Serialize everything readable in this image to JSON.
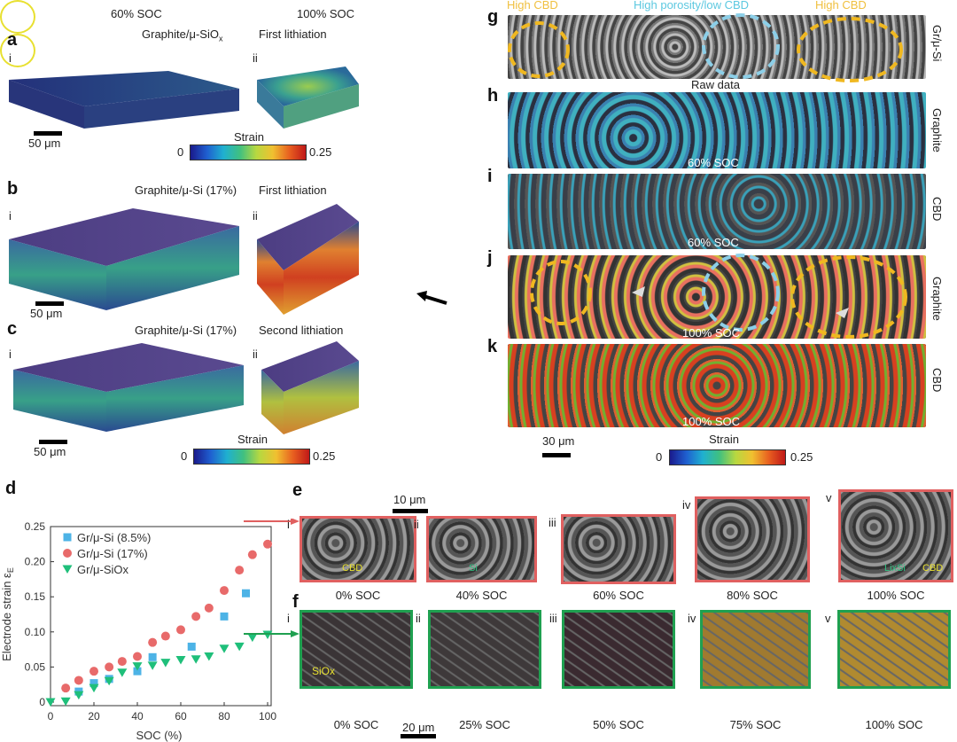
{
  "panels": {
    "a": {
      "label": "a",
      "col_left": "60% SOC",
      "col_right": "100% SOC",
      "material": "Graphite/μ-SiO",
      "material_sub": "x",
      "condition": "First lithiation",
      "i": "i",
      "ii": "ii",
      "scale": "50 μm",
      "colorbar": {
        "title": "Strain",
        "min": "0",
        "max": "0.25"
      }
    },
    "b": {
      "label": "b",
      "material": "Graphite/μ-Si (17%)",
      "condition": "First lithiation",
      "i": "i",
      "ii": "ii",
      "scale": "50 μm"
    },
    "c": {
      "label": "c",
      "material": "Graphite/μ-Si (17%)",
      "condition": "Second lithiation",
      "i": "i",
      "ii": "ii",
      "scale": "50 μm",
      "colorbar": {
        "title": "Strain",
        "min": "0",
        "max": "0.25"
      }
    },
    "g": {
      "label": "g",
      "ann_left": "High CBD",
      "ann_mid": "High porosity/low CBD",
      "ann_right": "High CBD",
      "caption": "Raw data",
      "side": "Gr/μ-Si"
    },
    "h": {
      "label": "h",
      "caption": "60% SOC",
      "side": "Graphite"
    },
    "i": {
      "label": "i",
      "caption": "60% SOC",
      "side": "CBD"
    },
    "j": {
      "label": "j",
      "caption": "100% SOC",
      "side": "Graphite"
    },
    "k": {
      "label": "k",
      "caption": "100% SOC",
      "side": "CBD",
      "scale": "30 μm",
      "colorbar": {
        "title": "Strain",
        "min": "0",
        "max": "0.25"
      }
    },
    "e": {
      "label": "e",
      "scale": "10 μm",
      "items": [
        {
          "num": "i",
          "soc": "0% SOC",
          "ann": "CBD"
        },
        {
          "num": "ii",
          "soc": "40% SOC",
          "ann": "Si"
        },
        {
          "num": "iii",
          "soc": "60% SOC"
        },
        {
          "num": "iv",
          "soc": "80% SOC"
        },
        {
          "num": "v",
          "soc": "100% SOC",
          "ann": "LixSi",
          "ann2": "CBD"
        }
      ]
    },
    "f": {
      "label": "f",
      "scale": "20 μm",
      "items": [
        {
          "num": "i",
          "soc": "0% SOC",
          "ann": "SiOx"
        },
        {
          "num": "ii",
          "soc": "25% SOC"
        },
        {
          "num": "iii",
          "soc": "50% SOC"
        },
        {
          "num": "iv",
          "soc": "75% SOC"
        },
        {
          "num": "v",
          "soc": "100% SOC"
        }
      ]
    },
    "d": {
      "label": "d"
    }
  },
  "colors": {
    "series1": "#4db3e6",
    "series2": "#e86a6a",
    "series3": "#1fbf7a",
    "high_cbd": "#f0b820",
    "low_cbd": "#8ccfe8",
    "frame_e": "#e06060",
    "frame_f": "#1fa050"
  },
  "chart_data": {
    "type": "scatter",
    "xlabel": "SOC (%)",
    "ylabel": "Electrode strain ε",
    "ylabel_sub": "E",
    "xlim": [
      0,
      100
    ],
    "ylim": [
      0,
      0.25
    ],
    "xticks": [
      "0",
      "20",
      "40",
      "60",
      "80",
      "100"
    ],
    "yticks": [
      "0",
      "0.05",
      "0.10",
      "0.15",
      "0.20",
      "0.25"
    ],
    "legend": "top-left",
    "series": [
      {
        "name": "Gr/μ-Si (8.5%)",
        "marker": "square",
        "x": [
          13,
          20,
          27,
          40,
          47,
          65,
          80,
          90
        ],
        "y": [
          0.015,
          0.027,
          0.033,
          0.044,
          0.064,
          0.079,
          0.122,
          0.155
        ]
      },
      {
        "name": "Gr/μ-Si (17%)",
        "marker": "circle",
        "x": [
          7,
          13,
          20,
          27,
          33,
          40,
          47,
          53,
          60,
          67,
          73,
          80,
          87,
          93,
          100
        ],
        "y": [
          0.02,
          0.031,
          0.044,
          0.05,
          0.058,
          0.065,
          0.085,
          0.094,
          0.103,
          0.122,
          0.134,
          0.159,
          0.188,
          0.21,
          0.225
        ]
      },
      {
        "name": "Gr/μ-SiOx",
        "marker": "triangle-down",
        "x": [
          0,
          7,
          13,
          20,
          27,
          33,
          40,
          47,
          53,
          60,
          67,
          73,
          80,
          87,
          93,
          100
        ],
        "y": [
          0,
          0.001,
          0.01,
          0.02,
          0.03,
          0.042,
          0.051,
          0.052,
          0.056,
          0.06,
          0.061,
          0.065,
          0.076,
          0.079,
          0.092,
          0.096
        ]
      }
    ]
  }
}
